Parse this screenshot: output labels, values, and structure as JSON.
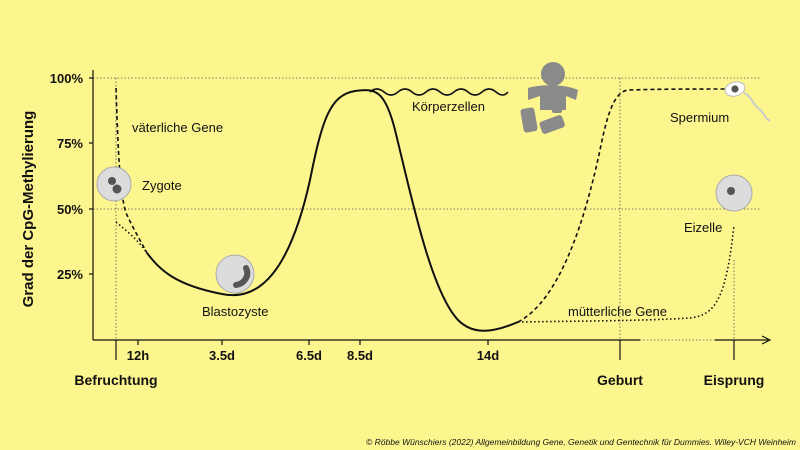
{
  "y_axis_title": "Grad der CpG-Methylierung",
  "y_ticks": [
    "100%",
    "75%",
    "50%",
    "25%"
  ],
  "x_ticks": [
    "12h",
    "3.5d",
    "6.5d",
    "8.5d",
    "14d"
  ],
  "milestones": [
    "Befruchtung",
    "Geburt",
    "Eisprung"
  ],
  "labels": {
    "paternal": "väterliche Gene",
    "maternal": "mütterliche Gene",
    "zygote": "Zygote",
    "blastocyst": "Blastozyste",
    "somatic": "Körperzellen",
    "sperm": "Spermium",
    "egg": "Eizelle"
  },
  "copyright": "© Röbbe Wünschiers (2022) Allgemeinbildung Gene, Genetik und Gentechnik für Dummies. Wiley-VCH Weinheim",
  "colors": {
    "background": "#fdf68f",
    "line": "#111111",
    "cell_fill": "#dcdcdc",
    "nucleus": "#555555",
    "baby": "#8a8a8a"
  },
  "icons": [
    "zygote-cell-icon",
    "blastocyst-cell-icon",
    "baby-icon",
    "sperm-icon",
    "egg-cell-icon"
  ]
}
